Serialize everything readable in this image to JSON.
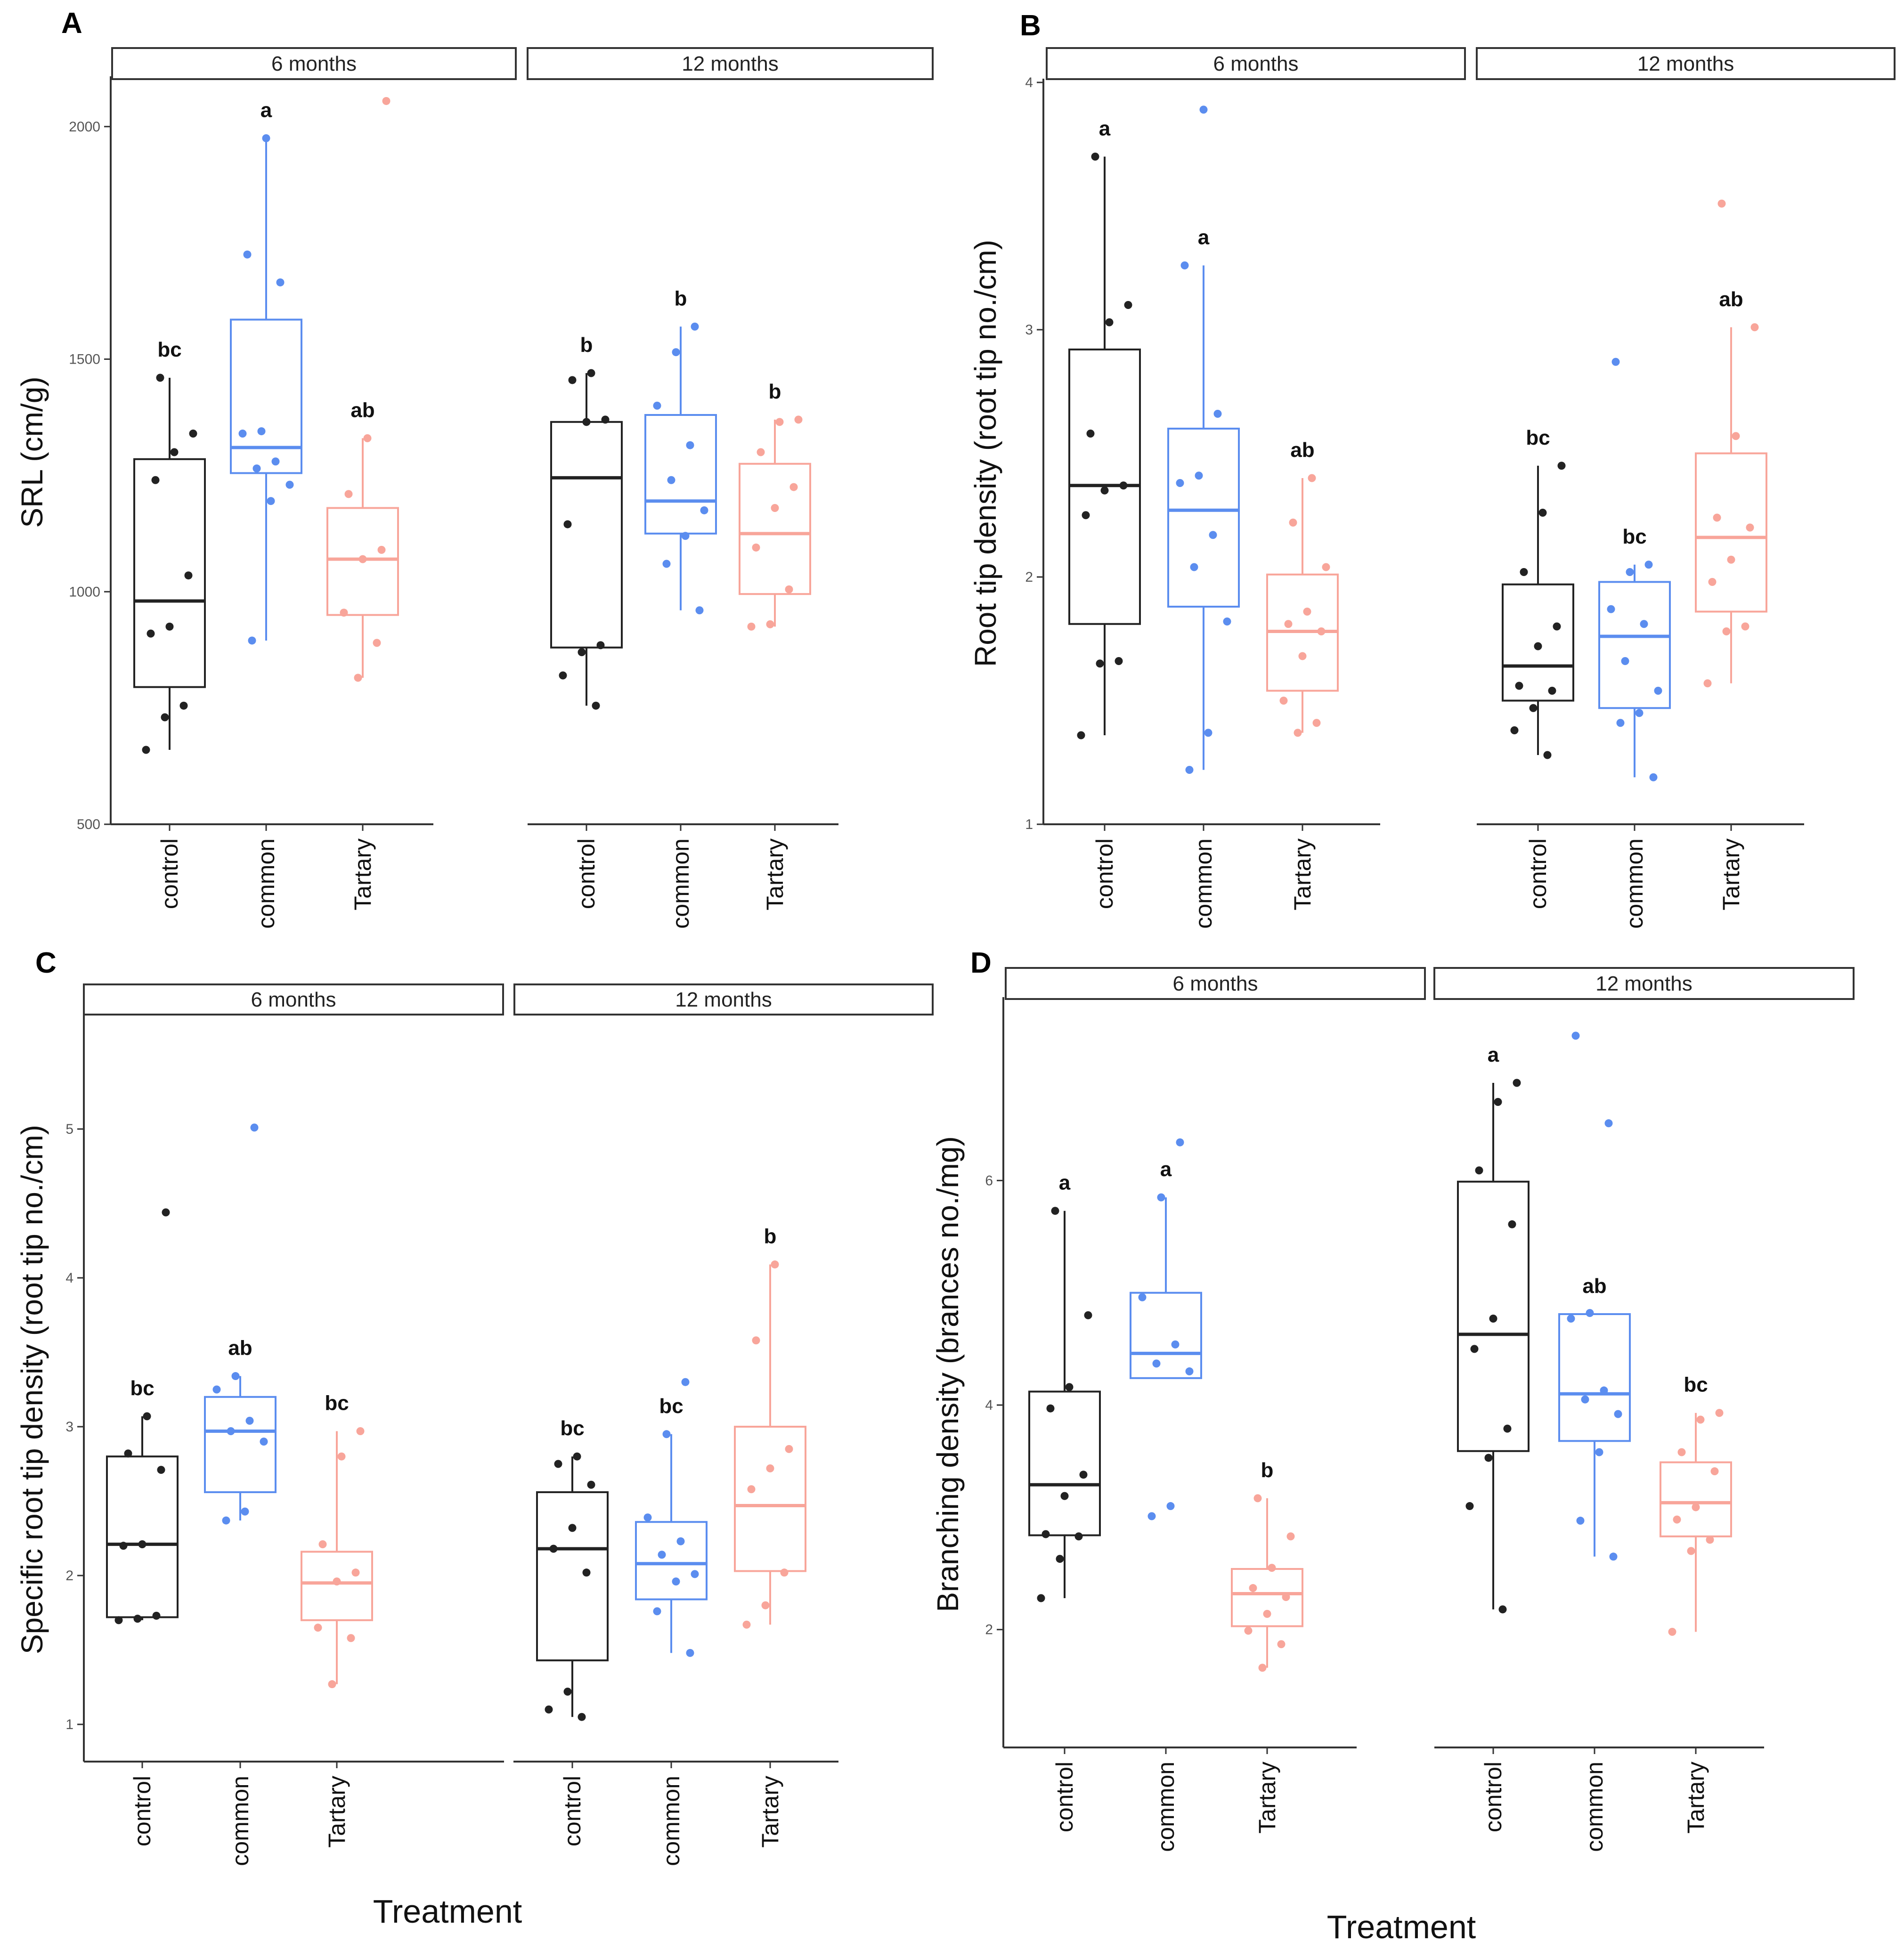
{
  "colors": {
    "control": "#222222",
    "common": "#5b8def",
    "Tartary": "#f8a59a"
  },
  "x_axis_label": "Treatment",
  "chart_data": [
    {
      "type": "box",
      "panel": "A",
      "ylabel": "SRL (cm/g)",
      "ylim": [
        500,
        2100
      ],
      "yticks": [
        500,
        1000,
        1500,
        2000
      ],
      "facets": [
        {
          "label": "6 months",
          "groups": [
            {
              "name": "control",
              "letter": "bc",
              "min": 660,
              "q1": 795,
              "median": 980,
              "q3": 1285,
              "max": 1460,
              "points": [
                660,
                730,
                755,
                910,
                925,
                1035,
                1240,
                1300,
                1340,
                1460
              ]
            },
            {
              "name": "common",
              "letter": "a",
              "min": 895,
              "q1": 1255,
              "median": 1310,
              "q3": 1585,
              "max": 1975,
              "points": [
                895,
                1195,
                1230,
                1265,
                1280,
                1340,
                1345,
                1665,
                1725,
                1975
              ]
            },
            {
              "name": "Tartary",
              "letter": "ab",
              "min": 815,
              "q1": 950,
              "median": 1070,
              "q3": 1180,
              "max": 1330,
              "points": [
                815,
                890,
                955,
                1070,
                1090,
                1210,
                1330,
                2055
              ]
            }
          ]
        },
        {
          "label": "12 months",
          "groups": [
            {
              "name": "control",
              "letter": "b",
              "min": 755,
              "q1": 880,
              "median": 1245,
              "q3": 1365,
              "max": 1470,
              "points": [
                755,
                820,
                870,
                885,
                1145,
                1365,
                1370,
                1455,
                1470
              ]
            },
            {
              "name": "common",
              "letter": "b",
              "min": 960,
              "q1": 1125,
              "median": 1195,
              "q3": 1380,
              "max": 1570,
              "points": [
                960,
                1060,
                1120,
                1175,
                1240,
                1315,
                1400,
                1515,
                1570
              ]
            },
            {
              "name": "Tartary",
              "letter": "b",
              "min": 925,
              "q1": 995,
              "median": 1125,
              "q3": 1275,
              "max": 1370,
              "points": [
                925,
                930,
                1005,
                1095,
                1180,
                1225,
                1300,
                1365,
                1370
              ]
            }
          ]
        }
      ]
    },
    {
      "type": "box",
      "panel": "B",
      "ylabel": "Root tip density (root tip no./cm)",
      "ylim": [
        1,
        4
      ],
      "yticks": [
        1,
        2,
        3,
        4
      ],
      "facets": [
        {
          "label": "6 months",
          "groups": [
            {
              "name": "control",
              "letter": "a",
              "min": 1.36,
              "q1": 1.81,
              "median": 2.37,
              "q3": 2.92,
              "max": 3.7,
              "points": [
                1.36,
                1.65,
                1.66,
                2.25,
                2.35,
                2.37,
                2.58,
                3.03,
                3.1,
                3.7
              ]
            },
            {
              "name": "common",
              "letter": "a",
              "min": 1.22,
              "q1": 1.88,
              "median": 2.27,
              "q3": 2.6,
              "max": 3.26,
              "points": [
                1.22,
                1.37,
                1.82,
                2.04,
                2.17,
                2.38,
                2.41,
                2.66,
                3.26,
                3.89
              ]
            },
            {
              "name": "Tartary",
              "letter": "ab",
              "min": 1.37,
              "q1": 1.54,
              "median": 1.78,
              "q3": 2.01,
              "max": 2.4,
              "points": [
                1.37,
                1.41,
                1.5,
                1.68,
                1.78,
                1.81,
                1.86,
                2.04,
                2.22,
                2.4
              ]
            }
          ]
        },
        {
          "label": "12 months",
          "groups": [
            {
              "name": "control",
              "letter": "bc",
              "min": 1.28,
              "q1": 1.5,
              "median": 1.64,
              "q3": 1.97,
              "max": 2.45,
              "points": [
                1.28,
                1.38,
                1.47,
                1.54,
                1.56,
                1.72,
                1.8,
                2.02,
                2.26,
                2.45
              ]
            },
            {
              "name": "common",
              "letter": "bc",
              "min": 1.19,
              "q1": 1.47,
              "median": 1.76,
              "q3": 1.98,
              "max": 2.05,
              "points": [
                1.19,
                1.41,
                1.45,
                1.54,
                1.66,
                1.81,
                1.87,
                2.02,
                2.05,
                2.87
              ]
            },
            {
              "name": "Tartary",
              "letter": "ab",
              "min": 1.57,
              "q1": 1.86,
              "median": 2.16,
              "q3": 2.5,
              "max": 3.01,
              "points": [
                1.57,
                1.78,
                1.8,
                1.98,
                2.07,
                2.2,
                2.24,
                2.57,
                3.01,
                3.51
              ]
            }
          ]
        }
      ]
    },
    {
      "type": "box",
      "panel": "C",
      "ylabel": "Specific root tip density (root tip no./cm)",
      "ylim": [
        0.75,
        5.75
      ],
      "yticks": [
        1,
        2,
        3,
        4,
        5
      ],
      "facets": [
        {
          "label": "6 months",
          "groups": [
            {
              "name": "control",
              "letter": "bc",
              "min": 1.7,
              "q1": 1.72,
              "median": 2.21,
              "q3": 2.8,
              "max": 3.07,
              "points": [
                1.7,
                1.71,
                1.73,
                2.2,
                2.21,
                2.71,
                2.82,
                3.07,
                4.44
              ]
            },
            {
              "name": "common",
              "letter": "ab",
              "min": 2.37,
              "q1": 2.56,
              "median": 2.97,
              "q3": 3.2,
              "max": 3.34,
              "points": [
                2.37,
                2.43,
                2.9,
                2.97,
                3.04,
                3.25,
                3.34,
                5.01
              ]
            },
            {
              "name": "Tartary",
              "letter": "bc",
              "min": 1.27,
              "q1": 1.7,
              "median": 1.95,
              "q3": 2.16,
              "max": 2.97,
              "points": [
                1.27,
                1.58,
                1.65,
                1.96,
                2.02,
                2.21,
                2.8,
                2.97
              ]
            }
          ]
        },
        {
          "label": "12 months",
          "groups": [
            {
              "name": "control",
              "letter": "bc",
              "min": 1.05,
              "q1": 1.43,
              "median": 2.18,
              "q3": 2.56,
              "max": 2.8,
              "points": [
                1.05,
                1.1,
                1.22,
                2.02,
                2.18,
                2.32,
                2.61,
                2.75,
                2.8
              ]
            },
            {
              "name": "common",
              "letter": "bc",
              "min": 1.48,
              "q1": 1.84,
              "median": 2.08,
              "q3": 2.36,
              "max": 2.95,
              "points": [
                1.48,
                1.76,
                1.96,
                2.01,
                2.14,
                2.23,
                2.39,
                2.95,
                3.3
              ]
            },
            {
              "name": "Tartary",
              "letter": "b",
              "min": 1.67,
              "q1": 2.03,
              "median": 2.47,
              "q3": 3.0,
              "max": 4.09,
              "points": [
                1.67,
                1.8,
                2.02,
                2.58,
                2.72,
                2.85,
                3.58,
                4.09
              ]
            }
          ]
        }
      ]
    },
    {
      "type": "box",
      "panel": "D",
      "ylabel": "Branching density (brances no./mg)",
      "ylim": [
        0.95,
        7.6
      ],
      "yticks": [
        2,
        4,
        6
      ],
      "facets": [
        {
          "label": "6 months",
          "groups": [
            {
              "name": "control",
              "letter": "a",
              "min": 2.28,
              "q1": 2.84,
              "median": 3.29,
              "q3": 4.12,
              "max": 5.73,
              "points": [
                2.28,
                2.63,
                2.83,
                2.85,
                3.19,
                3.38,
                3.97,
                4.16,
                4.8,
                5.73
              ]
            },
            {
              "name": "common",
              "letter": "a",
              "min": 4.24,
              "q1": 4.24,
              "median": 4.46,
              "q3": 5.0,
              "max": 5.85,
              "points": [
                3.01,
                3.1,
                4.3,
                4.37,
                4.54,
                4.96,
                5.85,
                6.34
              ]
            },
            {
              "name": "Tartary",
              "letter": "b",
              "min": 1.66,
              "q1": 2.03,
              "median": 2.32,
              "q3": 2.54,
              "max": 3.17,
              "points": [
                1.66,
                1.87,
                1.99,
                2.14,
                2.29,
                2.37,
                2.55,
                2.83,
                3.17
              ]
            }
          ]
        },
        {
          "label": "12 months",
          "groups": [
            {
              "name": "control",
              "letter": "a",
              "min": 2.18,
              "q1": 3.59,
              "median": 4.63,
              "q3": 5.99,
              "max": 6.87,
              "points": [
                2.18,
                3.1,
                3.53,
                3.79,
                4.5,
                4.77,
                5.61,
                6.09,
                6.7,
                6.87
              ]
            },
            {
              "name": "common",
              "letter": "ab",
              "min": 2.65,
              "q1": 3.68,
              "median": 4.1,
              "q3": 4.81,
              "max": 4.81,
              "points": [
                2.65,
                2.97,
                3.58,
                3.92,
                4.05,
                4.13,
                4.77,
                4.82,
                6.51,
                7.29
              ]
            },
            {
              "name": "Tartary",
              "letter": "bc",
              "min": 1.98,
              "q1": 2.83,
              "median": 3.13,
              "q3": 3.49,
              "max": 3.93,
              "points": [
                1.98,
                2.7,
                2.8,
                2.98,
                3.09,
                3.41,
                3.58,
                3.87,
                3.93
              ]
            }
          ]
        }
      ]
    }
  ]
}
